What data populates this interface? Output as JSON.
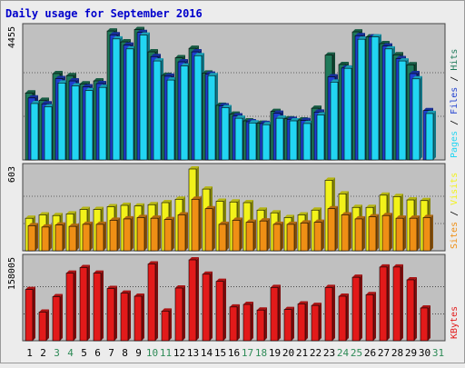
{
  "chart_data": {
    "type": "bar",
    "title": "Daily usage for September 2016",
    "days": [
      "1",
      "2",
      "3",
      "4",
      "5",
      "6",
      "7",
      "8",
      "9",
      "10",
      "11",
      "12",
      "13",
      "14",
      "15",
      "16",
      "17",
      "18",
      "19",
      "20",
      "21",
      "22",
      "23",
      "24",
      "25",
      "26",
      "27",
      "28",
      "29",
      "30",
      "31"
    ],
    "weekend_days": [
      "3",
      "4",
      "10",
      "11",
      "17",
      "18",
      "24",
      "25",
      "31"
    ],
    "panels": [
      {
        "id": "pages-files-hits",
        "max_label": "4455",
        "ymax": 4455,
        "series": [
          {
            "name": "Hits",
            "color": "#1f7a5a",
            "values": [
              2280,
              2030,
              2940,
              2870,
              2590,
              2690,
              4390,
              4020,
              4440,
              3680,
              2880,
              3480,
              3800,
              2960,
              1860,
              1560,
              1330,
              1250,
              1650,
              1400,
              1360,
              1760,
              3570,
              3250,
              4360,
              4190,
              3960,
              3580,
              3240,
              null,
              null
            ]
          },
          {
            "name": "Files",
            "color": "#1f3fcf",
            "values": [
              2110,
              1910,
              2770,
              2690,
              2490,
              2600,
              4260,
              3910,
              4340,
              3520,
              2850,
              3340,
              3680,
              2920,
              1840,
              1500,
              1300,
              1240,
              1590,
              1380,
              1340,
              1630,
              2830,
              3130,
              4230,
              4190,
              3880,
              3450,
              2940,
              1680,
              null
            ]
          },
          {
            "name": "Pages",
            "color": "#22d5f2",
            "values": [
              1920,
              1810,
              2620,
              2520,
              2360,
              2470,
              4120,
              3780,
              4250,
              3370,
              2720,
              3200,
              3550,
              2870,
              1780,
              1420,
              1260,
              1200,
              1420,
              1330,
              1240,
              1530,
              2650,
              3120,
              4110,
              4190,
              3780,
              3370,
              2760,
              1580,
              null
            ]
          }
        ],
        "labels": [
          "Pages",
          "Files",
          "Hits"
        ],
        "label_colors": [
          "#22d5f2",
          "#1f3fcf",
          "#1f7a5a"
        ],
        "label_sep_color": "#000000"
      },
      {
        "id": "sites-visits",
        "max_label": "603",
        "ymax": 603,
        "series": [
          {
            "name": "Visits",
            "color": "#f2f21a",
            "values": [
              240,
              265,
              260,
              272,
              305,
              305,
              325,
              335,
              330,
              340,
              355,
              380,
              603,
              455,
              365,
              360,
              355,
              300,
              280,
              245,
              265,
              300,
              520,
              420,
              320,
              320,
              410,
              400,
              375,
              370,
              null
            ]
          },
          {
            "name": "Sites",
            "color": "#ef8f15",
            "values": [
              185,
              175,
              190,
              180,
              195,
              195,
              225,
              235,
              245,
              240,
              230,
              265,
              380,
              310,
              195,
              225,
              210,
              220,
              195,
              195,
              205,
              210,
              310,
              265,
              235,
              250,
              260,
              240,
              240,
              245,
              null
            ]
          }
        ],
        "labels": [
          "Sites",
          "Visits"
        ],
        "label_colors": [
          "#ef8f15",
          "#f2f21a"
        ],
        "label_sep_color": "#000000"
      },
      {
        "id": "kbytes",
        "max_label": "158005",
        "ymax": 158005,
        "series": [
          {
            "name": "KBytes",
            "color": "#e21a1a",
            "values": [
              100000,
              56000,
              86000,
              132000,
              143000,
              132000,
              102000,
              93000,
              87000,
              150000,
              58000,
              103000,
              158005,
              130000,
              116000,
              66000,
              71000,
              60000,
              104000,
              61000,
              72000,
              69000,
              104000,
              87000,
              124000,
              90000,
              144000,
              144000,
              119000,
              64000,
              null
            ]
          }
        ],
        "labels": [
          "KBytes"
        ],
        "label_colors": [
          "#e21a1a"
        ],
        "label_sep_color": "#000000"
      }
    ]
  },
  "colors": {
    "background": "#ececec",
    "plot_bg": "#c0c0c0",
    "title": "#0000cc",
    "weekday_label": "#000000",
    "weekend_label": "#2e8b57",
    "border": "#444444"
  }
}
